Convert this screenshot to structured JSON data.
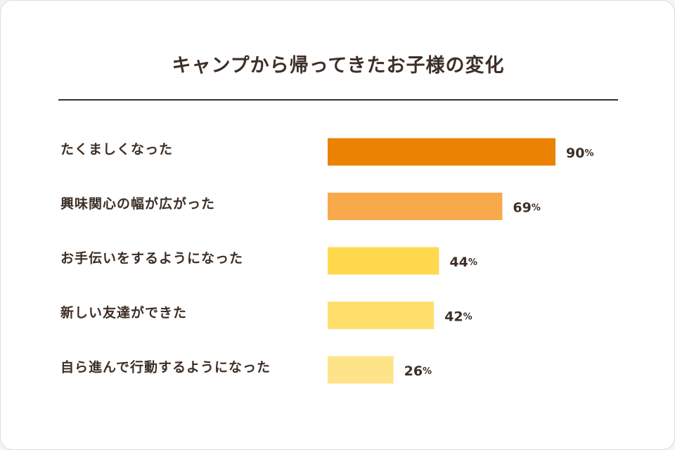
{
  "chart_data": {
    "type": "bar",
    "orientation": "horizontal",
    "title": "キャンプから帰ってきたお子様の変化",
    "unit": "%",
    "categories": [
      "たくましくなった",
      "興味関心の幅が広がった",
      "お手伝いをするようになった",
      "新しい友達ができた",
      "自ら進んで行動するようになった"
    ],
    "values": [
      90,
      69,
      44,
      42,
      26
    ],
    "colors": [
      "#ec8203",
      "#f8a94b",
      "#ffd84e",
      "#ffdf6c",
      "#ffe389"
    ],
    "xlim": [
      0,
      100
    ],
    "grid": false,
    "legend": "none"
  }
}
